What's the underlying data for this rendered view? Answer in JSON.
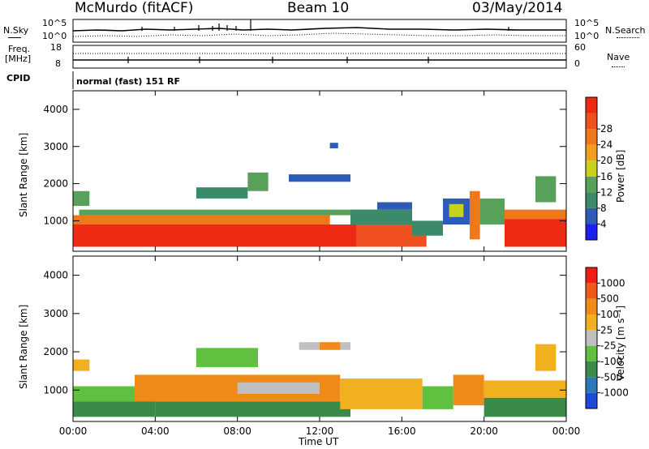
{
  "header": {
    "station": "McMurdo (fitACF)",
    "beam": "Beam 10",
    "date": "03/May/2014"
  },
  "sky_panel": {
    "left_label": "N.Sky",
    "right_label": "N.Search",
    "left_top_tick": "10^5",
    "left_bottom_tick": "10^0",
    "right_top_tick": "10^5",
    "right_bottom_tick": "10^0"
  },
  "freq_panel": {
    "left_label_1": "Freq.",
    "left_label_2": "[MHz]",
    "left_top_tick": "18",
    "left_bottom_tick": "8",
    "right_label": "Nave",
    "right_top_tick": "60",
    "right_bottom_tick": "0"
  },
  "cpid": {
    "label": "CPID",
    "text": "normal (fast) 151 RF"
  },
  "chart_data": [
    {
      "type": "heatmap",
      "name": "Power",
      "ylabel": "Slant Range [km]",
      "ylim": [
        180,
        4500
      ],
      "yticks": [
        "1000",
        "2000",
        "3000",
        "4000"
      ],
      "ytick_values": [
        1000,
        2000,
        3000,
        4000
      ],
      "xlim": [
        0,
        24
      ],
      "colorbar": {
        "label": "Power [dB]",
        "ticks": [
          "4",
          "8",
          "12",
          "16",
          "20",
          "24",
          "28"
        ],
        "colors": [
          "#1e1ef0",
          "#2f5bb8",
          "#3b8a6a",
          "#59a05a",
          "#c9d21a",
          "#f0a020",
          "#f07818",
          "#f05020",
          "#ee2a14"
        ]
      },
      "regions": [
        {
          "t0": 0.0,
          "t1": 13.8,
          "r0": 300,
          "r1": 900,
          "class": "#ee2a14"
        },
        {
          "t0": 0.0,
          "t1": 12.5,
          "r0": 900,
          "r1": 1150,
          "class": "#f07818"
        },
        {
          "t0": 0.3,
          "t1": 14.8,
          "r0": 1150,
          "r1": 1300,
          "class": "#59a05a"
        },
        {
          "t0": 13.8,
          "t1": 17.2,
          "r0": 300,
          "r1": 900,
          "class": "#f05020"
        },
        {
          "t0": 13.5,
          "t1": 16.5,
          "r0": 900,
          "r1": 1300,
          "class": "#3b8a6a"
        },
        {
          "t0": 14.8,
          "t1": 16.5,
          "r0": 1300,
          "r1": 1500,
          "class": "#2f5bb8"
        },
        {
          "t0": 16.5,
          "t1": 18.0,
          "r0": 600,
          "r1": 1000,
          "class": "#3b8a6a"
        },
        {
          "t0": 18.0,
          "t1": 19.3,
          "r0": 900,
          "r1": 1600,
          "class": "#2f5bb8"
        },
        {
          "t0": 18.3,
          "t1": 19.0,
          "r0": 1100,
          "r1": 1450,
          "class": "#c9d21a"
        },
        {
          "t0": 19.3,
          "t1": 19.8,
          "r0": 500,
          "r1": 1800,
          "class": "#f07818"
        },
        {
          "t0": 19.8,
          "t1": 21.0,
          "r0": 900,
          "r1": 1600,
          "class": "#59a05a"
        },
        {
          "t0": 21.0,
          "t1": 24.0,
          "r0": 300,
          "r1": 1050,
          "class": "#ee2a14"
        },
        {
          "t0": 21.0,
          "t1": 24.0,
          "r0": 1050,
          "r1": 1300,
          "class": "#f07818"
        },
        {
          "t0": 0.0,
          "t1": 0.8,
          "r0": 1400,
          "r1": 1800,
          "class": "#59a05a"
        },
        {
          "t0": 6.0,
          "t1": 8.5,
          "r0": 1600,
          "r1": 1900,
          "class": "#3b8a6a"
        },
        {
          "t0": 8.5,
          "t1": 9.5,
          "r0": 1800,
          "r1": 2300,
          "class": "#59a05a"
        },
        {
          "t0": 10.5,
          "t1": 13.5,
          "r0": 2050,
          "r1": 2250,
          "class": "#2f5bb8"
        },
        {
          "t0": 12.5,
          "t1": 12.9,
          "r0": 2950,
          "r1": 3100,
          "class": "#2f5bb8"
        },
        {
          "t0": 22.5,
          "t1": 23.5,
          "r0": 1500,
          "r1": 2200,
          "class": "#59a05a"
        }
      ]
    },
    {
      "type": "heatmap",
      "name": "Velocity",
      "ylabel": "Slant Range [km]",
      "ylim": [
        180,
        4500
      ],
      "yticks": [
        "1000",
        "2000",
        "3000",
        "4000"
      ],
      "ytick_values": [
        1000,
        2000,
        3000,
        4000
      ],
      "xlim": [
        0,
        24
      ],
      "xlabel": "Time UT",
      "xticks": [
        "00:00",
        "04:00",
        "08:00",
        "12:00",
        "16:00",
        "20:00",
        "00:00"
      ],
      "xtick_values": [
        0,
        4,
        8,
        12,
        16,
        20,
        24
      ],
      "colorbar": {
        "label": "Velocity [m s⁻¹]",
        "ticks": [
          "1000",
          "500",
          "100",
          "25",
          "-25",
          "-100",
          "-500",
          "-1000"
        ],
        "colors": [
          "#1e4ad8",
          "#2f78b8",
          "#3a8a4a",
          "#60c040",
          "#c0c0c0",
          "#f0b020",
          "#f08a18",
          "#f05a18",
          "#ee1e14"
        ]
      },
      "regions": [
        {
          "t0": 0.0,
          "t1": 4.0,
          "r0": 300,
          "r1": 700,
          "class": "#3a8a4a"
        },
        {
          "t0": 0.0,
          "t1": 4.0,
          "r0": 700,
          "r1": 1100,
          "class": "#60c040"
        },
        {
          "t0": 4.0,
          "t1": 13.5,
          "r0": 300,
          "r1": 700,
          "class": "#3a8a4a"
        },
        {
          "t0": 3.0,
          "t1": 13.0,
          "r0": 700,
          "r1": 1400,
          "class": "#f08a18"
        },
        {
          "t0": 8.0,
          "t1": 12.0,
          "r0": 900,
          "r1": 1200,
          "class": "#c0c0c0"
        },
        {
          "t0": 13.0,
          "t1": 17.0,
          "r0": 500,
          "r1": 1300,
          "class": "#f0b020"
        },
        {
          "t0": 17.0,
          "t1": 18.5,
          "r0": 500,
          "r1": 1100,
          "class": "#60c040"
        },
        {
          "t0": 18.5,
          "t1": 20.0,
          "r0": 600,
          "r1": 1400,
          "class": "#f08a18"
        },
        {
          "t0": 20.0,
          "t1": 24.0,
          "r0": 300,
          "r1": 800,
          "class": "#3a8a4a"
        },
        {
          "t0": 20.0,
          "t1": 24.0,
          "r0": 800,
          "r1": 1250,
          "class": "#f0b020"
        },
        {
          "t0": 0.0,
          "t1": 0.8,
          "r0": 1500,
          "r1": 1800,
          "class": "#f0b020"
        },
        {
          "t0": 6.0,
          "t1": 9.0,
          "r0": 1600,
          "r1": 2100,
          "class": "#60c040"
        },
        {
          "t0": 11.0,
          "t1": 13.5,
          "r0": 2050,
          "r1": 2250,
          "class": "#c0c0c0"
        },
        {
          "t0": 12.0,
          "t1": 13.0,
          "r0": 2050,
          "r1": 2250,
          "class": "#f08a18"
        },
        {
          "t0": 22.5,
          "t1": 23.5,
          "r0": 1500,
          "r1": 2200,
          "class": "#f0b020"
        }
      ]
    }
  ]
}
